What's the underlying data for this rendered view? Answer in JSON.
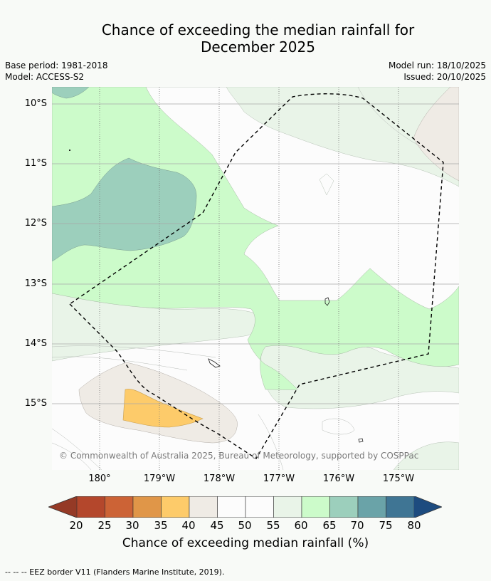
{
  "title": {
    "line1": "Chance of exceeding the median rainfall for",
    "line2": "December 2025"
  },
  "meta": {
    "base_period": "Base period: 1981-2018",
    "model": "Model: ACCESS-S2",
    "model_run": "Model run: 18/10/2025",
    "issued": "Issued: 20/10/2025"
  },
  "map": {
    "lat_labels": [
      "10°S",
      "11°S",
      "12°S",
      "13°S",
      "14°S",
      "15°S"
    ],
    "lon_labels": [
      "180°",
      "179°W",
      "178°W",
      "177°W",
      "176°W",
      "175°W"
    ],
    "copyright": "© Commonwealth of Australia 2025, Bureau of Meteorology, supported by COSPPac"
  },
  "colorbar": {
    "ticks": [
      "20",
      "25",
      "30",
      "35",
      "40",
      "45",
      "50",
      "55",
      "60",
      "65",
      "70",
      "75",
      "80"
    ],
    "label": "Chance of exceeding median rainfall (%)",
    "colors": {
      "below_20": "#953a26",
      "20_25": "#b4472c",
      "25_30": "#cc6336",
      "30_35": "#e09648",
      "35_40": "#fdcb6a",
      "40_45": "#efebe5",
      "45_50": "#fcfcfc",
      "50_55": "#fcfcfc",
      "55_60": "#e9f4e8",
      "60_65": "#ccfbca",
      "65_70": "#9ccfbc",
      "70_75": "#6aa3a8",
      "75_80": "#3f7594",
      "above_80": "#1d4b7f"
    }
  },
  "legend": {
    "eez": "--  --  -- EEZ border V11 (Flanders Marine Institute, 2019)."
  }
}
